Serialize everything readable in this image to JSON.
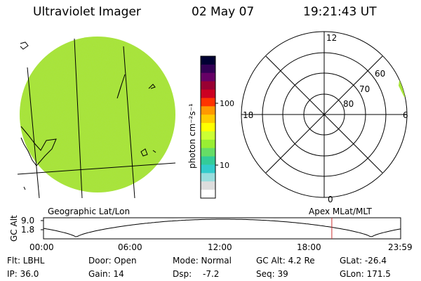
{
  "header": {
    "title": "Ultraviolet Imager",
    "date": "02 May 07",
    "time": "19:21:43 UT"
  },
  "colorbar": {
    "label": "photon cm⁻²s⁻¹",
    "ticks": [
      "100",
      "10"
    ],
    "colors": [
      "#000033",
      "#330055",
      "#660066",
      "#990033",
      "#cc0022",
      "#ff3300",
      "#ff9900",
      "#ffcc00",
      "#ffff00",
      "#ccff33",
      "#99ee33",
      "#66dd66",
      "#33cc99",
      "#33cccc",
      "#99dddd",
      "#dddddd",
      "#ffffff"
    ]
  },
  "geo_panel": {
    "label": "Geographic Lat/Lon",
    "fill_color": "#a8e43a"
  },
  "polar_panel": {
    "label": "Apex MLat/MLT",
    "lat_labels": [
      "80",
      "70",
      "60"
    ],
    "mlt_labels": {
      "top": "12",
      "left": "18",
      "right": "6",
      "bottom": "0"
    }
  },
  "altitude_plot": {
    "ylabel": "GC Alt",
    "yticks": [
      "9.0",
      "1.8"
    ],
    "xticks": [
      "00:00",
      "06:00",
      "12:00",
      "18:00",
      "23:59"
    ],
    "marker_hour": 19.36,
    "marker_color": "#cc3333"
  },
  "info": {
    "flt": "Flt: LBHL",
    "door": "Door: Open",
    "mode": "Mode: Normal",
    "gc_alt": "GC Alt: 4.2 Re",
    "glat": "GLat: -26.4",
    "ip": "IP: 36.0",
    "gain": "Gain: 14",
    "dsp_label": "Dsp:",
    "dsp_value": "-7.2",
    "seq": "Seq: 39",
    "glon": "GLon: 171.5"
  }
}
